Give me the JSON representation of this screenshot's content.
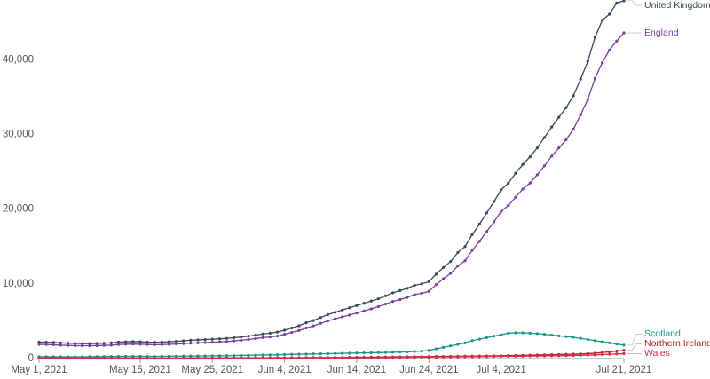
{
  "chart_data": {
    "type": "line",
    "x": [
      "2021-05-01",
      "2021-05-02",
      "2021-05-03",
      "2021-05-04",
      "2021-05-05",
      "2021-05-06",
      "2021-05-07",
      "2021-05-08",
      "2021-05-09",
      "2021-05-10",
      "2021-05-11",
      "2021-05-12",
      "2021-05-13",
      "2021-05-14",
      "2021-05-15",
      "2021-05-16",
      "2021-05-17",
      "2021-05-18",
      "2021-05-19",
      "2021-05-20",
      "2021-05-21",
      "2021-05-22",
      "2021-05-23",
      "2021-05-24",
      "2021-05-25",
      "2021-05-26",
      "2021-05-27",
      "2021-05-28",
      "2021-05-29",
      "2021-05-30",
      "2021-05-31",
      "2021-06-01",
      "2021-06-02",
      "2021-06-03",
      "2021-06-04",
      "2021-06-05",
      "2021-06-06",
      "2021-06-07",
      "2021-06-08",
      "2021-06-09",
      "2021-06-10",
      "2021-06-11",
      "2021-06-12",
      "2021-06-13",
      "2021-06-14",
      "2021-06-15",
      "2021-06-16",
      "2021-06-17",
      "2021-06-18",
      "2021-06-19",
      "2021-06-20",
      "2021-06-21",
      "2021-06-22",
      "2021-06-23",
      "2021-06-24",
      "2021-06-25",
      "2021-06-26",
      "2021-06-27",
      "2021-06-28",
      "2021-06-29",
      "2021-06-30",
      "2021-07-01",
      "2021-07-02",
      "2021-07-03",
      "2021-07-04",
      "2021-07-05",
      "2021-07-06",
      "2021-07-07",
      "2021-07-08",
      "2021-07-09",
      "2021-07-10",
      "2021-07-11",
      "2021-07-12",
      "2021-07-13",
      "2021-07-14",
      "2021-07-15",
      "2021-07-16",
      "2021-07-17",
      "2021-07-18",
      "2021-07-19",
      "2021-07-20",
      "2021-07-21"
    ],
    "xlim": [
      "2021-05-01",
      "2021-07-21"
    ],
    "xticks": [
      {
        "value": "2021-05-01",
        "label": "May 1, 2021"
      },
      {
        "value": "2021-05-15",
        "label": "May 15, 2021"
      },
      {
        "value": "2021-05-25",
        "label": "May 25, 2021"
      },
      {
        "value": "2021-06-04",
        "label": "Jun 4, 2021"
      },
      {
        "value": "2021-06-14",
        "label": "Jun 14, 2021"
      },
      {
        "value": "2021-06-24",
        "label": "Jun 24, 2021"
      },
      {
        "value": "2021-07-04",
        "label": "Jul 4, 2021"
      },
      {
        "value": "2021-07-21",
        "label": "Jul 21, 2021"
      }
    ],
    "ylim": [
      0,
      48000
    ],
    "yticks": [
      0,
      {
        "value": 10000,
        "label": "10,000"
      },
      {
        "value": 20000,
        "label": "20,000"
      },
      {
        "value": 30000,
        "label": "30,000"
      },
      {
        "value": 40000,
        "label": "40,000"
      }
    ],
    "grid": false,
    "series": [
      {
        "name": "United Kingdom",
        "color": "#3c4858",
        "values": [
          2200,
          2180,
          2150,
          2100,
          2050,
          2020,
          2000,
          2000,
          2020,
          2050,
          2100,
          2200,
          2250,
          2280,
          2250,
          2200,
          2180,
          2200,
          2250,
          2300,
          2380,
          2450,
          2500,
          2550,
          2600,
          2650,
          2700,
          2800,
          2900,
          3000,
          3150,
          3300,
          3400,
          3550,
          3800,
          4100,
          4400,
          4800,
          5100,
          5500,
          5900,
          6200,
          6500,
          6800,
          7100,
          7400,
          7700,
          8000,
          8400,
          8800,
          9100,
          9400,
          9800,
          10000,
          10300,
          11300,
          12200,
          13000,
          14200,
          15000,
          16600,
          18000,
          19500,
          21000,
          22600,
          23500,
          24800,
          26000,
          27000,
          28200,
          29600,
          31000,
          32300,
          33600,
          35200,
          37400,
          39800,
          43000,
          45300,
          46100,
          47600,
          47900
        ]
      },
      {
        "name": "England",
        "color": "#7a3e9d",
        "values": [
          1900,
          1880,
          1850,
          1800,
          1760,
          1730,
          1720,
          1720,
          1740,
          1760,
          1800,
          1880,
          1920,
          1940,
          1920,
          1880,
          1860,
          1870,
          1900,
          1950,
          2000,
          2060,
          2100,
          2140,
          2180,
          2230,
          2280,
          2370,
          2450,
          2550,
          2680,
          2800,
          2900,
          3020,
          3250,
          3500,
          3760,
          4100,
          4380,
          4720,
          5050,
          5320,
          5580,
          5840,
          6100,
          6380,
          6650,
          6950,
          7300,
          7650,
          7900,
          8200,
          8550,
          8750,
          9000,
          9900,
          10700,
          11400,
          12400,
          13100,
          14500,
          15700,
          17000,
          18300,
          19700,
          20500,
          21600,
          22700,
          23500,
          24600,
          25800,
          27100,
          28200,
          29300,
          30700,
          32600,
          34700,
          37500,
          39600,
          41300,
          42500,
          43600
        ]
      },
      {
        "name": "Scotland",
        "color": "#17968a",
        "values": [
          250,
          250,
          240,
          240,
          230,
          230,
          240,
          250,
          260,
          270,
          280,
          290,
          300,
          300,
          300,
          290,
          290,
          300,
          310,
          320,
          330,
          340,
          350,
          360,
          370,
          380,
          390,
          400,
          420,
          440,
          460,
          480,
          500,
          520,
          540,
          560,
          580,
          600,
          620,
          640,
          660,
          680,
          700,
          720,
          740,
          760,
          780,
          800,
          820,
          850,
          880,
          900,
          950,
          1000,
          1080,
          1300,
          1500,
          1700,
          1900,
          2100,
          2400,
          2600,
          2800,
          3000,
          3200,
          3400,
          3450,
          3450,
          3400,
          3350,
          3250,
          3150,
          3050,
          2950,
          2850,
          2700,
          2550,
          2400,
          2250,
          2100,
          1950,
          1800
        ]
      },
      {
        "name": "Northern Ireland",
        "color": "#b5262b",
        "values": [
          90,
          90,
          85,
          85,
          80,
          80,
          80,
          80,
          80,
          80,
          80,
          80,
          80,
          75,
          75,
          75,
          75,
          75,
          75,
          75,
          75,
          75,
          80,
          80,
          80,
          85,
          85,
          90,
          90,
          95,
          100,
          100,
          105,
          110,
          110,
          115,
          120,
          125,
          130,
          135,
          140,
          145,
          150,
          160,
          170,
          180,
          190,
          200,
          210,
          220,
          230,
          240,
          250,
          260,
          270,
          280,
          290,
          300,
          310,
          320,
          330,
          340,
          350,
          360,
          380,
          400,
          420,
          440,
          460,
          480,
          500,
          520,
          540,
          560,
          590,
          620,
          660,
          720,
          800,
          900,
          1000,
          1100
        ]
      },
      {
        "name": "Wales",
        "color": "#d9294e",
        "values": [
          60,
          60,
          55,
          55,
          50,
          50,
          50,
          50,
          50,
          50,
          50,
          50,
          50,
          50,
          45,
          45,
          45,
          45,
          50,
          50,
          50,
          50,
          55,
          55,
          60,
          60,
          60,
          65,
          65,
          70,
          70,
          75,
          75,
          80,
          80,
          85,
          85,
          90,
          90,
          95,
          100,
          100,
          105,
          110,
          115,
          120,
          125,
          130,
          140,
          150,
          160,
          170,
          180,
          190,
          200,
          210,
          220,
          230,
          240,
          250,
          260,
          270,
          280,
          290,
          300,
          310,
          320,
          330,
          340,
          350,
          360,
          370,
          380,
          400,
          420,
          440,
          470,
          500,
          540,
          580,
          620,
          660
        ]
      }
    ]
  }
}
